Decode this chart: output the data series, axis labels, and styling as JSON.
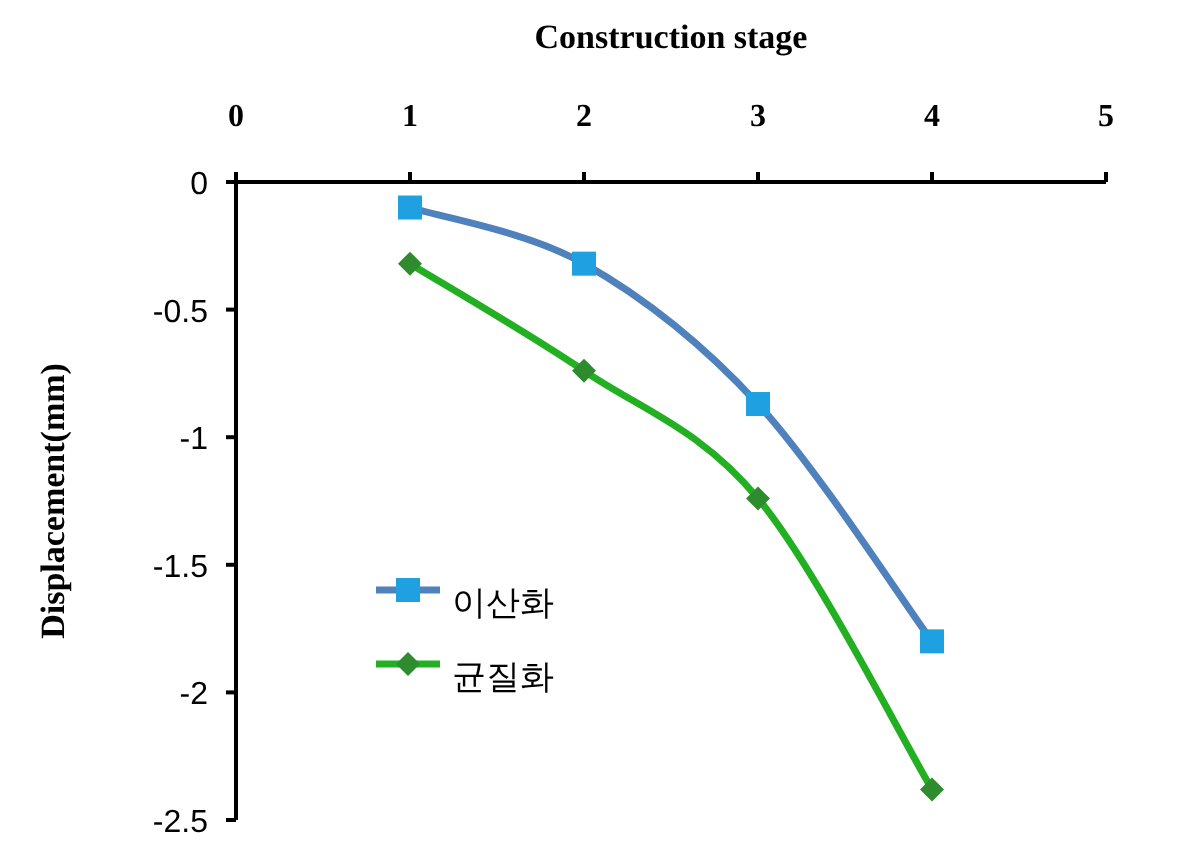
{
  "chart_data": {
    "type": "line",
    "xlabel": "Construction stage",
    "ylabel": "Displacement(mm)",
    "x": [
      1,
      2,
      3,
      4
    ],
    "series": [
      {
        "name": "이산화",
        "color": "#4f81bd",
        "colors": [
          "#1fa0e0",
          "#1fa0e0",
          "#1fa0e0",
          "#1fa0e0"
        ],
        "marker": "square",
        "values": [
          -0.1,
          -0.32,
          -0.87,
          -1.8
        ]
      },
      {
        "name": "균질화",
        "color": "#22b022",
        "colors": [
          "#2e8b2e",
          "#2e8b2e",
          "#2e8b2e",
          "#2e8b2e"
        ],
        "marker": "diamond",
        "values": [
          -0.32,
          -0.74,
          -1.24,
          -2.38
        ]
      }
    ],
    "xlim": [
      0,
      5
    ],
    "xticks": [
      0,
      1,
      2,
      3,
      4,
      5
    ],
    "ylim": [
      -2.5,
      0
    ],
    "yticks": [
      0,
      -0.5,
      -1,
      -1.5,
      -2,
      -2.5
    ],
    "grid": false,
    "legend": "left"
  }
}
